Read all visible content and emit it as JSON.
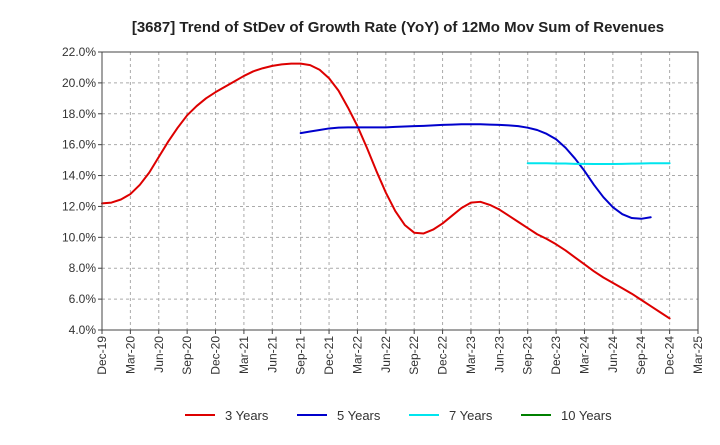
{
  "chart_data": {
    "type": "line",
    "title": "[3687]  Trend of StDev of Growth Rate (YoY) of 12Mo Mov Sum of Revenues",
    "xlabel": "",
    "ylabel": "",
    "ylim": [
      4.0,
      22.0
    ],
    "yticks": [
      4.0,
      6.0,
      8.0,
      10.0,
      12.0,
      14.0,
      16.0,
      18.0,
      20.0,
      22.0
    ],
    "ytick_labels": [
      "4.0%",
      "6.0%",
      "8.0%",
      "10.0%",
      "12.0%",
      "14.0%",
      "16.0%",
      "18.0%",
      "20.0%",
      "22.0%"
    ],
    "x_start": "2019-12",
    "x_end": "2025-03",
    "xtick_labels": [
      "Dec-19",
      "Mar-20",
      "Jun-20",
      "Sep-20",
      "Dec-20",
      "Mar-21",
      "Jun-21",
      "Sep-21",
      "Dec-21",
      "Mar-22",
      "Jun-22",
      "Sep-22",
      "Dec-22",
      "Mar-23",
      "Jun-23",
      "Sep-23",
      "Dec-23",
      "Mar-24",
      "Jun-24",
      "Sep-24",
      "Dec-24",
      "Mar-25"
    ],
    "grid": true,
    "legend_position": "bottom",
    "series": [
      {
        "name": "3 Years",
        "color": "#dd0000",
        "points": [
          [
            "2019-12",
            12.2
          ],
          [
            "2020-01",
            12.25
          ],
          [
            "2020-02",
            12.45
          ],
          [
            "2020-03",
            12.8
          ],
          [
            "2020-04",
            13.4
          ],
          [
            "2020-05",
            14.2
          ],
          [
            "2020-06",
            15.2
          ],
          [
            "2020-07",
            16.2
          ],
          [
            "2020-08",
            17.1
          ],
          [
            "2020-09",
            17.9
          ],
          [
            "2020-10",
            18.5
          ],
          [
            "2020-11",
            19.0
          ],
          [
            "2020-12",
            19.4
          ],
          [
            "2021-01",
            19.75
          ],
          [
            "2021-02",
            20.1
          ],
          [
            "2021-03",
            20.45
          ],
          [
            "2021-04",
            20.75
          ],
          [
            "2021-05",
            20.95
          ],
          [
            "2021-06",
            21.1
          ],
          [
            "2021-07",
            21.2
          ],
          [
            "2021-08",
            21.25
          ],
          [
            "2021-09",
            21.25
          ],
          [
            "2021-10",
            21.15
          ],
          [
            "2021-11",
            20.85
          ],
          [
            "2021-12",
            20.3
          ],
          [
            "2022-01",
            19.5
          ],
          [
            "2022-02",
            18.4
          ],
          [
            "2022-03",
            17.2
          ],
          [
            "2022-04",
            15.8
          ],
          [
            "2022-05",
            14.3
          ],
          [
            "2022-06",
            12.9
          ],
          [
            "2022-07",
            11.7
          ],
          [
            "2022-08",
            10.8
          ],
          [
            "2022-09",
            10.3
          ],
          [
            "2022-10",
            10.25
          ],
          [
            "2022-11",
            10.5
          ],
          [
            "2022-12",
            10.9
          ],
          [
            "2023-01",
            11.4
          ],
          [
            "2023-02",
            11.9
          ],
          [
            "2023-03",
            12.25
          ],
          [
            "2023-04",
            12.3
          ],
          [
            "2023-05",
            12.1
          ],
          [
            "2023-06",
            11.8
          ],
          [
            "2023-07",
            11.4
          ],
          [
            "2023-08",
            11.0
          ],
          [
            "2023-09",
            10.6
          ],
          [
            "2023-10",
            10.2
          ],
          [
            "2023-11",
            9.9
          ],
          [
            "2023-12",
            9.55
          ],
          [
            "2024-01",
            9.15
          ],
          [
            "2024-02",
            8.7
          ],
          [
            "2024-03",
            8.25
          ],
          [
            "2024-04",
            7.8
          ],
          [
            "2024-05",
            7.4
          ],
          [
            "2024-06",
            7.05
          ],
          [
            "2024-07",
            6.7
          ],
          [
            "2024-08",
            6.35
          ],
          [
            "2024-09",
            5.95
          ],
          [
            "2024-10",
            5.55
          ],
          [
            "2024-11",
            5.15
          ],
          [
            "2024-12",
            4.75
          ]
        ]
      },
      {
        "name": "5 Years",
        "color": "#0000cc",
        "points": [
          [
            "2021-09",
            16.75
          ],
          [
            "2021-10",
            16.85
          ],
          [
            "2021-11",
            16.95
          ],
          [
            "2021-12",
            17.05
          ],
          [
            "2022-01",
            17.1
          ],
          [
            "2022-02",
            17.12
          ],
          [
            "2022-03",
            17.12
          ],
          [
            "2022-04",
            17.12
          ],
          [
            "2022-05",
            17.12
          ],
          [
            "2022-06",
            17.12
          ],
          [
            "2022-07",
            17.15
          ],
          [
            "2022-08",
            17.18
          ],
          [
            "2022-09",
            17.2
          ],
          [
            "2022-10",
            17.22
          ],
          [
            "2022-11",
            17.25
          ],
          [
            "2022-12",
            17.28
          ],
          [
            "2023-01",
            17.3
          ],
          [
            "2023-02",
            17.32
          ],
          [
            "2023-03",
            17.32
          ],
          [
            "2023-04",
            17.32
          ],
          [
            "2023-05",
            17.3
          ],
          [
            "2023-06",
            17.28
          ],
          [
            "2023-07",
            17.25
          ],
          [
            "2023-08",
            17.2
          ],
          [
            "2023-09",
            17.1
          ],
          [
            "2023-10",
            16.95
          ],
          [
            "2023-11",
            16.7
          ],
          [
            "2023-12",
            16.35
          ],
          [
            "2024-01",
            15.8
          ],
          [
            "2024-02",
            15.1
          ],
          [
            "2024-03",
            14.3
          ],
          [
            "2024-04",
            13.4
          ],
          [
            "2024-05",
            12.6
          ],
          [
            "2024-06",
            11.95
          ],
          [
            "2024-07",
            11.5
          ],
          [
            "2024-08",
            11.25
          ],
          [
            "2024-09",
            11.2
          ],
          [
            "2024-10",
            11.3
          ]
        ]
      },
      {
        "name": "7 Years",
        "color": "#00e5ee",
        "points": [
          [
            "2023-09",
            14.8
          ],
          [
            "2023-10",
            14.8
          ],
          [
            "2023-11",
            14.8
          ],
          [
            "2023-12",
            14.78
          ],
          [
            "2024-01",
            14.78
          ],
          [
            "2024-02",
            14.76
          ],
          [
            "2024-03",
            14.76
          ],
          [
            "2024-04",
            14.75
          ],
          [
            "2024-05",
            14.75
          ],
          [
            "2024-06",
            14.75
          ],
          [
            "2024-07",
            14.76
          ],
          [
            "2024-08",
            14.77
          ],
          [
            "2024-09",
            14.78
          ],
          [
            "2024-10",
            14.8
          ],
          [
            "2024-11",
            14.8
          ],
          [
            "2024-12",
            14.8
          ]
        ]
      },
      {
        "name": "10 Years",
        "color": "#008000",
        "points": []
      }
    ]
  }
}
